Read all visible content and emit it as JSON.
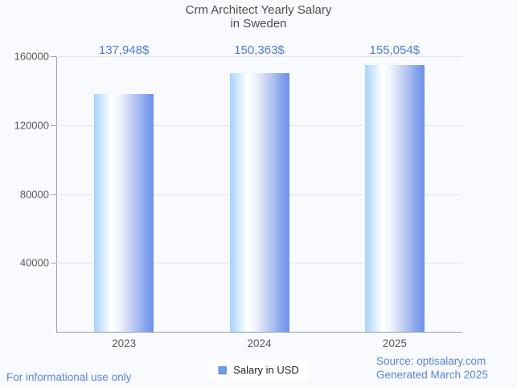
{
  "title": {
    "lines": [
      "Crm Architect Yearly Salary",
      "in Sweden"
    ]
  },
  "chart_data": {
    "type": "bar",
    "title": "Crm Architect Yearly Salary in Sweden",
    "categories": [
      "2023",
      "2024",
      "2025"
    ],
    "series": [
      {
        "name": "Salary in USD",
        "values": [
          137948,
          150363,
          155054
        ]
      }
    ],
    "value_labels": [
      "137,948$",
      "150,363$",
      "155,054$"
    ],
    "xlabel": "",
    "ylabel": "",
    "ylim": [
      0,
      160000
    ],
    "yticks": [
      40000,
      80000,
      120000,
      160000
    ],
    "ytick_labels": [
      "40000",
      "80000",
      "120000",
      "160000"
    ],
    "grid": true,
    "legend_position": "bottom-center"
  },
  "legend": {
    "label": "Salary in USD",
    "swatch_color": "#6d9eeb"
  },
  "footer": {
    "left": "For informational use only",
    "source": "Source: optisalary.com",
    "generated": "Generated March 2025"
  },
  "colors": {
    "background": "#f8fafd",
    "title_text": "#4b4c4e",
    "axis": "#9aa0a6",
    "grid_line": "#e2e5ea",
    "tick_label": "#57595b",
    "value_label": "#4e7cd6",
    "footer_text": "#5d83de",
    "bar_gradient_left": "#a6d3fb",
    "bar_gradient_middle": "#ffffff",
    "bar_gradient_right": "#6e93e9"
  }
}
